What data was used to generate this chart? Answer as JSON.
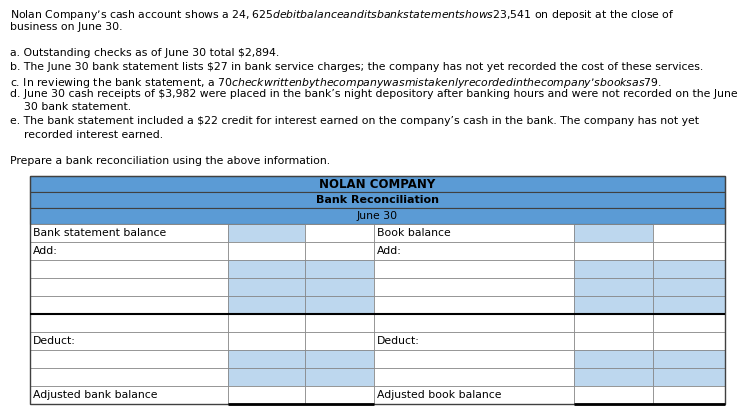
{
  "text_lines": [
    "Nolan Company’s cash account shows a $24,625 debit balance and its bank statement shows $23,541 on deposit at the close of",
    "business on June 30.",
    "",
    "a. Outstanding checks as of June 30 total $2,894.",
    "b. The June 30 bank statement lists $27 in bank service charges; the company has not yet recorded the cost of these services.",
    "c. In reviewing the bank statement, a $70 check written by the company was mistakenly recorded in the company’s books as $79.",
    "d. June 30 cash receipts of $3,982 were placed in the bank’s night depository after banking hours and were not recorded on the June",
    "    30 bank statement.",
    "e. The bank statement included a $22 credit for interest earned on the company’s cash in the bank. The company has not yet",
    "    recorded interest earned.",
    "",
    "Prepare a bank reconciliation using the above information."
  ],
  "table_title1": "NOLAN COMPANY",
  "table_title2": "Bank Reconciliation",
  "table_title3": "June 30",
  "header_bg": "#5b9bd5",
  "row_bg_blue": "#bdd7ee",
  "row_bg_white": "#ffffff",
  "border_dark": "#404040",
  "border_light": "#808080",
  "left_labels": [
    "Bank statement balance",
    "Add:",
    "",
    "",
    "",
    "",
    "Deduct:",
    "",
    "",
    "Adjusted bank balance"
  ],
  "right_labels": [
    "Book balance",
    "Add:",
    "",
    "",
    "",
    "",
    "Deduct:",
    "",
    "",
    "Adjusted book balance"
  ],
  "text_fontsize": 7.8,
  "table_fontsize": 7.8,
  "header_fontsize1": 8.5,
  "header_fontsize2": 8.0,
  "header_fontsize3": 7.8
}
